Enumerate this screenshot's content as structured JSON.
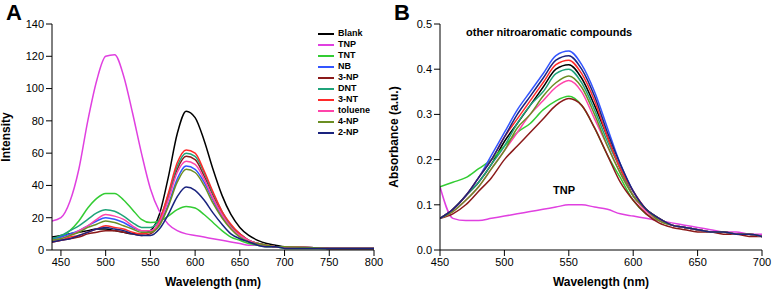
{
  "chart_data": [
    {
      "type": "line",
      "title": "A",
      "x_label": "Wavelength (nm)",
      "y_label": "Intensity",
      "legend": "upper right",
      "x": [
        440,
        450,
        460,
        470,
        480,
        490,
        500,
        510,
        520,
        530,
        540,
        550,
        560,
        570,
        580,
        590,
        600,
        610,
        620,
        630,
        640,
        650,
        660,
        670,
        680,
        690,
        700,
        750,
        800
      ],
      "xlim": [
        440,
        800
      ],
      "xticks": [
        450,
        500,
        550,
        600,
        650,
        700,
        750,
        800
      ],
      "ylim": [
        0,
        140
      ],
      "yticks": [
        0,
        20,
        40,
        60,
        80,
        100,
        120,
        140
      ],
      "series": [
        {
          "name": "Blank",
          "color": "#000000",
          "values": [
            8,
            9,
            10,
            11,
            12,
            13,
            13,
            12,
            11,
            10,
            10,
            12,
            22,
            45,
            72,
            86,
            82,
            68,
            50,
            34,
            22,
            14,
            9,
            6,
            4,
            3,
            2,
            1,
            1
          ]
        },
        {
          "name": "TNP",
          "color": "#e040e0",
          "values": [
            18,
            20,
            30,
            50,
            80,
            105,
            120,
            121,
            108,
            85,
            60,
            38,
            24,
            16,
            12,
            10,
            9,
            8,
            7,
            6,
            5,
            4,
            3,
            3,
            2,
            2,
            2,
            1,
            1
          ]
        },
        {
          "name": "TNT",
          "color": "#33cc33",
          "values": [
            6,
            8,
            12,
            18,
            26,
            32,
            35,
            35,
            31,
            25,
            19,
            17,
            18,
            21,
            25,
            27,
            26,
            22,
            17,
            12,
            8,
            6,
            4,
            3,
            2,
            2,
            1,
            1,
            1
          ]
        },
        {
          "name": "NB",
          "color": "#3355ff",
          "values": [
            7,
            8,
            10,
            12,
            15,
            18,
            20,
            19,
            17,
            14,
            12,
            12,
            16,
            28,
            44,
            52,
            50,
            42,
            31,
            21,
            14,
            9,
            6,
            4,
            3,
            2,
            2,
            1,
            1
          ]
        },
        {
          "name": "3-NP",
          "color": "#8b1a1a",
          "values": [
            5,
            6,
            7,
            8,
            10,
            11,
            12,
            12,
            11,
            10,
            9,
            10,
            17,
            33,
            50,
            58,
            56,
            46,
            34,
            23,
            15,
            10,
            6,
            4,
            3,
            2,
            2,
            1,
            1
          ]
        },
        {
          "name": "DNT",
          "color": "#1fa37a",
          "values": [
            7,
            9,
            12,
            15,
            19,
            23,
            25,
            24,
            21,
            17,
            14,
            14,
            19,
            34,
            52,
            60,
            58,
            48,
            35,
            24,
            15,
            10,
            6,
            4,
            3,
            2,
            2,
            1,
            1
          ]
        },
        {
          "name": "3-NT",
          "color": "#ff2a2a",
          "values": [
            5,
            6,
            8,
            9,
            11,
            13,
            15,
            14,
            13,
            11,
            10,
            11,
            18,
            35,
            54,
            62,
            60,
            49,
            36,
            24,
            16,
            10,
            6,
            4,
            3,
            2,
            2,
            1,
            1
          ]
        },
        {
          "name": "toluene",
          "color": "#ff44aa",
          "values": [
            6,
            7,
            9,
            12,
            15,
            19,
            22,
            21,
            19,
            15,
            12,
            12,
            17,
            31,
            48,
            55,
            53,
            44,
            32,
            22,
            14,
            9,
            6,
            4,
            3,
            2,
            2,
            1,
            1
          ]
        },
        {
          "name": "4-NP",
          "color": "#6b8e23",
          "values": [
            6,
            7,
            9,
            11,
            14,
            16,
            18,
            17,
            15,
            13,
            11,
            11,
            15,
            27,
            42,
            50,
            48,
            40,
            29,
            20,
            13,
            8,
            5,
            4,
            3,
            2,
            2,
            1,
            1
          ]
        },
        {
          "name": "2-NP",
          "color": "#1a237e",
          "values": [
            5,
            6,
            7,
            9,
            11,
            13,
            14,
            13,
            12,
            10,
            9,
            9,
            13,
            22,
            33,
            39,
            37,
            31,
            23,
            16,
            10,
            7,
            5,
            3,
            2,
            2,
            1,
            1,
            1
          ]
        }
      ]
    },
    {
      "type": "line",
      "title": "B",
      "x_label": "Wavelength (nm)",
      "y_label": "Absorbance (a.u.)",
      "annotations": [
        {
          "text": "other nitroaromatic compounds"
        },
        {
          "text": "TNP"
        }
      ],
      "x": [
        450,
        460,
        470,
        480,
        490,
        500,
        510,
        520,
        530,
        540,
        550,
        560,
        570,
        580,
        590,
        600,
        610,
        620,
        630,
        640,
        650,
        660,
        670,
        680,
        690,
        700
      ],
      "xlim": [
        450,
        700
      ],
      "xticks": [
        450,
        500,
        550,
        600,
        650,
        700
      ],
      "ylim": [
        0,
        0.5
      ],
      "yticks": [
        {
          "value": 0,
          "label": "0.0"
        },
        0.1,
        0.2,
        0.3,
        0.4,
        0.5
      ],
      "series": [
        {
          "name": "Blank",
          "color": "#000000",
          "values": [
            0.07,
            0.09,
            0.12,
            0.15,
            0.19,
            0.24,
            0.28,
            0.32,
            0.36,
            0.4,
            0.41,
            0.38,
            0.32,
            0.25,
            0.18,
            0.12,
            0.09,
            0.07,
            0.055,
            0.05,
            0.045,
            0.04,
            0.04,
            0.035,
            0.035,
            0.03
          ]
        },
        {
          "name": "TNP",
          "color": "#e040e0",
          "values": [
            0.14,
            0.07,
            0.065,
            0.065,
            0.07,
            0.075,
            0.08,
            0.085,
            0.09,
            0.095,
            0.1,
            0.1,
            0.095,
            0.09,
            0.08,
            0.075,
            0.07,
            0.065,
            0.06,
            0.055,
            0.05,
            0.045,
            0.04,
            0.04,
            0.035,
            0.035
          ]
        },
        {
          "name": "TNT",
          "color": "#33cc33",
          "values": [
            0.14,
            0.15,
            0.16,
            0.18,
            0.2,
            0.23,
            0.26,
            0.28,
            0.31,
            0.33,
            0.34,
            0.32,
            0.27,
            0.21,
            0.16,
            0.11,
            0.08,
            0.065,
            0.055,
            0.05,
            0.045,
            0.04,
            0.04,
            0.035,
            0.035,
            0.03
          ]
        },
        {
          "name": "NB",
          "color": "#3355ff",
          "values": [
            0.07,
            0.09,
            0.12,
            0.16,
            0.21,
            0.26,
            0.31,
            0.35,
            0.39,
            0.43,
            0.44,
            0.41,
            0.35,
            0.27,
            0.19,
            0.13,
            0.09,
            0.07,
            0.055,
            0.05,
            0.045,
            0.04,
            0.04,
            0.035,
            0.035,
            0.03
          ]
        },
        {
          "name": "3-NP",
          "color": "#8b1a1a",
          "values": [
            0.07,
            0.08,
            0.1,
            0.13,
            0.16,
            0.2,
            0.23,
            0.26,
            0.29,
            0.32,
            0.335,
            0.32,
            0.27,
            0.21,
            0.15,
            0.11,
            0.08,
            0.06,
            0.05,
            0.045,
            0.04,
            0.04,
            0.035,
            0.035,
            0.03,
            0.03
          ]
        },
        {
          "name": "DNT",
          "color": "#1fa37a",
          "values": [
            0.07,
            0.09,
            0.12,
            0.15,
            0.19,
            0.23,
            0.28,
            0.32,
            0.35,
            0.39,
            0.4,
            0.37,
            0.31,
            0.24,
            0.18,
            0.12,
            0.09,
            0.07,
            0.055,
            0.05,
            0.045,
            0.04,
            0.04,
            0.035,
            0.035,
            0.03
          ]
        },
        {
          "name": "3-NT",
          "color": "#ff2a2a",
          "values": [
            0.07,
            0.09,
            0.12,
            0.16,
            0.2,
            0.25,
            0.29,
            0.33,
            0.37,
            0.41,
            0.42,
            0.39,
            0.33,
            0.25,
            0.18,
            0.13,
            0.09,
            0.07,
            0.055,
            0.05,
            0.045,
            0.04,
            0.04,
            0.035,
            0.035,
            0.03
          ]
        },
        {
          "name": "toluene",
          "color": "#ff44aa",
          "values": [
            0.07,
            0.085,
            0.11,
            0.14,
            0.18,
            0.22,
            0.26,
            0.3,
            0.33,
            0.36,
            0.375,
            0.35,
            0.29,
            0.23,
            0.17,
            0.12,
            0.085,
            0.065,
            0.055,
            0.05,
            0.045,
            0.04,
            0.04,
            0.035,
            0.035,
            0.03
          ]
        },
        {
          "name": "4-NP",
          "color": "#6b8e23",
          "values": [
            0.07,
            0.085,
            0.11,
            0.14,
            0.18,
            0.22,
            0.27,
            0.3,
            0.34,
            0.37,
            0.385,
            0.36,
            0.3,
            0.23,
            0.17,
            0.12,
            0.09,
            0.065,
            0.055,
            0.05,
            0.045,
            0.04,
            0.04,
            0.035,
            0.035,
            0.03
          ]
        },
        {
          "name": "2-NP",
          "color": "#1a237e",
          "values": [
            0.07,
            0.09,
            0.12,
            0.16,
            0.2,
            0.25,
            0.3,
            0.34,
            0.38,
            0.42,
            0.43,
            0.4,
            0.34,
            0.26,
            0.19,
            0.13,
            0.09,
            0.07,
            0.055,
            0.05,
            0.045,
            0.04,
            0.04,
            0.035,
            0.035,
            0.03
          ]
        }
      ]
    }
  ]
}
